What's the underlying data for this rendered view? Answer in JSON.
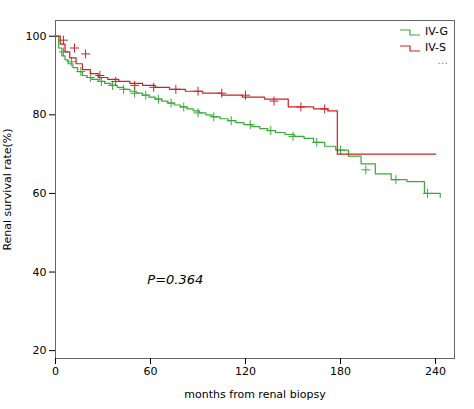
{
  "chart_data": {
    "type": "step",
    "xlabel": "months from renal biopsy",
    "ylabel": "Renal survival rate(%)",
    "xlim": [
      0,
      252
    ],
    "ylim": [
      18,
      104
    ],
    "xticks": [
      0,
      60,
      120,
      180,
      240
    ],
    "yticks": [
      20,
      40,
      60,
      80,
      100
    ],
    "grid": false,
    "legend": "upper right",
    "annotations": [
      {
        "text": "P=0.364",
        "x": 58,
        "y": 37
      },
      {
        "text": "..."
      }
    ],
    "series": [
      {
        "name": "IV-G",
        "color": "#3aaa3a",
        "marker": "plus",
        "x": [
          0,
          2,
          4,
          6,
          8,
          11,
          14,
          17,
          20,
          23,
          27,
          31,
          35,
          39,
          43,
          47,
          51,
          55,
          59,
          63,
          67,
          71,
          75,
          79,
          83,
          87,
          91,
          95,
          99,
          104,
          109,
          114,
          119,
          124,
          129,
          134,
          139,
          145,
          151,
          157,
          163,
          170,
          177,
          185,
          193,
          202,
          212,
          222,
          233,
          243
        ],
        "values": [
          100,
          97,
          95,
          94,
          93,
          92,
          91,
          90,
          89.5,
          89,
          88.5,
          88,
          87.5,
          87,
          86.5,
          86,
          85.5,
          85,
          84.5,
          84,
          83.5,
          83,
          82.5,
          82,
          81.5,
          81,
          80.5,
          80,
          79.5,
          79,
          78.5,
          78,
          77.5,
          77,
          76.5,
          76,
          75.5,
          75,
          74.5,
          74,
          73,
          72,
          71,
          69.5,
          67.5,
          65,
          63.5,
          63,
          60,
          59
        ],
        "censor_x": [
          5,
          10,
          16,
          22,
          29,
          36,
          43,
          50,
          57,
          65,
          73,
          81,
          90,
          100,
          111,
          123,
          136,
          150,
          165,
          180,
          196,
          215,
          235
        ],
        "censor_values": [
          96,
          93.5,
          91,
          89.5,
          88.5,
          87.5,
          86.5,
          85.5,
          85,
          84,
          83,
          82,
          80.5,
          79.5,
          78.5,
          77.5,
          76,
          74.5,
          73,
          71,
          66,
          63.5,
          60
        ]
      },
      {
        "name": "IV-S",
        "color": "#cc2222",
        "marker": "plus",
        "x": [
          0,
          3,
          6,
          9,
          13,
          17,
          22,
          27,
          33,
          40,
          47,
          55,
          63,
          72,
          82,
          93,
          105,
          118,
          132,
          147,
          163,
          172,
          178,
          185,
          240
        ],
        "values": [
          100,
          98,
          96,
          94.5,
          93,
          91.5,
          90.5,
          89.5,
          89,
          88.5,
          88,
          87.5,
          87,
          86.5,
          86,
          85.5,
          85,
          84.5,
          84,
          82,
          81.5,
          81,
          70,
          70,
          70
        ],
        "censor_x": [
          5,
          12,
          19,
          28,
          38,
          50,
          62,
          76,
          90,
          105,
          120,
          138,
          155,
          170
        ],
        "censor_values": [
          99,
          97,
          95.5,
          90,
          88.5,
          87.5,
          87,
          86.5,
          86,
          85.5,
          85,
          83.5,
          82,
          81.5
        ]
      }
    ]
  }
}
